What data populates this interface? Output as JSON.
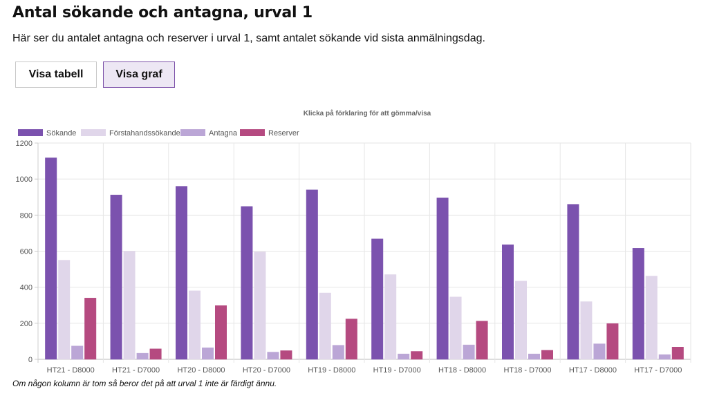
{
  "page": {
    "title": "Antal sökande och antagna, urval 1",
    "intro": "Här ser du antalet antagna och reserver i urval 1, samt antalet sökande vid sista anmälningsdag.",
    "buttons": {
      "table": "Visa tabell",
      "graph": "Visa graf"
    },
    "footnote": "Om någon kolumn är tom så beror det på att urval 1 inte är färdigt ännu."
  },
  "chart_data": {
    "type": "bar",
    "title": "Klicka på förklaring för att gömma/visa",
    "categories": [
      "HT21 - D8000",
      "HT21 - D7000",
      "HT20 - D8000",
      "HT20 - D7000",
      "HT19 - D8000",
      "HT19 - D7000",
      "HT18 - D8000",
      "HT18 - D7000",
      "HT17 - D8000",
      "HT17 - D7000"
    ],
    "series": [
      {
        "name": "Sökande",
        "color": "#7b52ae",
        "values": [
          1118,
          912,
          960,
          848,
          940,
          668,
          896,
          636,
          860,
          616
        ]
      },
      {
        "name": "Förstahandssökande",
        "color": "#e0d6ea",
        "values": [
          550,
          600,
          380,
          596,
          368,
          470,
          346,
          434,
          320,
          462
        ]
      },
      {
        "name": "Antagna",
        "color": "#bba6d6",
        "values": [
          74,
          34,
          64,
          40,
          78,
          30,
          80,
          30,
          86,
          26
        ]
      },
      {
        "name": "Reserver",
        "color": "#b54a80",
        "values": [
          340,
          58,
          298,
          48,
          224,
          44,
          212,
          50,
          198,
          68
        ]
      }
    ],
    "yticks": [
      "0",
      "200",
      "400",
      "600",
      "800",
      "1000",
      "1200"
    ],
    "ylim": [
      0,
      1200
    ],
    "grid": true,
    "legend": "top-left"
  }
}
